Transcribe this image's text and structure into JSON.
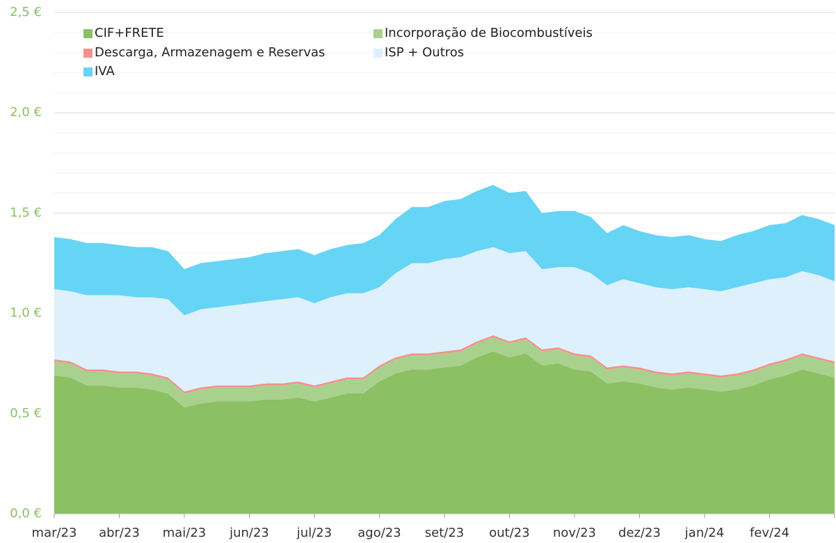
{
  "chart_data": {
    "type": "stacked_area",
    "categories": [
      "mar/23",
      null,
      null,
      null,
      "abr/23",
      null,
      null,
      null,
      "mai/23",
      null,
      null,
      null,
      "jun/23",
      null,
      null,
      null,
      "jul/23",
      null,
      null,
      null,
      "ago/23",
      null,
      null,
      null,
      "set/23",
      null,
      null,
      null,
      "out/23",
      null,
      null,
      null,
      "nov/23",
      null,
      null,
      null,
      "dez/23",
      null,
      null,
      null,
      "jan/24",
      null,
      null,
      null,
      "fev/24",
      null,
      null,
      null,
      null
    ],
    "series": [
      {
        "name": "CIF+FRETE",
        "color": "#8bc063",
        "values": [
          0.69,
          0.68,
          0.64,
          0.64,
          0.63,
          0.63,
          0.62,
          0.6,
          0.53,
          0.55,
          0.56,
          0.56,
          0.56,
          0.57,
          0.57,
          0.58,
          0.56,
          0.58,
          0.6,
          0.6,
          0.66,
          0.7,
          0.72,
          0.72,
          0.73,
          0.74,
          0.78,
          0.81,
          0.78,
          0.8,
          0.74,
          0.75,
          0.72,
          0.71,
          0.65,
          0.66,
          0.65,
          0.63,
          0.62,
          0.63,
          0.62,
          0.61,
          0.62,
          0.64,
          0.67,
          0.69,
          0.72,
          0.7,
          0.68
        ]
      },
      {
        "name": "Incorporação de Biocombustíveis",
        "color": "#a9d18e",
        "values": [
          0.07,
          0.07,
          0.07,
          0.07,
          0.07,
          0.07,
          0.07,
          0.07,
          0.07,
          0.07,
          0.07,
          0.07,
          0.07,
          0.07,
          0.07,
          0.07,
          0.07,
          0.07,
          0.07,
          0.07,
          0.07,
          0.07,
          0.07,
          0.07,
          0.07,
          0.07,
          0.07,
          0.07,
          0.07,
          0.07,
          0.07,
          0.07,
          0.07,
          0.07,
          0.07,
          0.07,
          0.07,
          0.07,
          0.07,
          0.07,
          0.07,
          0.07,
          0.07,
          0.07,
          0.07,
          0.07,
          0.07,
          0.07,
          0.07
        ]
      },
      {
        "name": "Descarga, Armazenagem e Reservas",
        "color": "#f4908e",
        "values": [
          0.01,
          0.01,
          0.01,
          0.01,
          0.01,
          0.01,
          0.01,
          0.01,
          0.01,
          0.01,
          0.01,
          0.01,
          0.01,
          0.01,
          0.01,
          0.01,
          0.01,
          0.01,
          0.01,
          0.01,
          0.01,
          0.01,
          0.01,
          0.01,
          0.01,
          0.01,
          0.01,
          0.01,
          0.01,
          0.01,
          0.01,
          0.01,
          0.01,
          0.01,
          0.01,
          0.01,
          0.01,
          0.01,
          0.01,
          0.01,
          0.01,
          0.01,
          0.01,
          0.01,
          0.01,
          0.01,
          0.01,
          0.01,
          0.01
        ]
      },
      {
        "name": "ISP + Outros",
        "color": "#def0fb",
        "values": [
          0.35,
          0.35,
          0.37,
          0.37,
          0.38,
          0.37,
          0.38,
          0.39,
          0.38,
          0.39,
          0.39,
          0.4,
          0.41,
          0.41,
          0.42,
          0.42,
          0.41,
          0.42,
          0.42,
          0.42,
          0.39,
          0.42,
          0.45,
          0.45,
          0.46,
          0.46,
          0.45,
          0.44,
          0.44,
          0.43,
          0.4,
          0.4,
          0.43,
          0.41,
          0.41,
          0.43,
          0.42,
          0.42,
          0.42,
          0.42,
          0.42,
          0.42,
          0.43,
          0.43,
          0.42,
          0.41,
          0.41,
          0.41,
          0.4
        ]
      },
      {
        "name": "IVA",
        "color": "#66d4f5",
        "values": [
          0.26,
          0.26,
          0.26,
          0.26,
          0.25,
          0.25,
          0.25,
          0.24,
          0.23,
          0.23,
          0.23,
          0.23,
          0.23,
          0.24,
          0.24,
          0.24,
          0.24,
          0.24,
          0.24,
          0.25,
          0.26,
          0.27,
          0.28,
          0.28,
          0.29,
          0.29,
          0.3,
          0.31,
          0.3,
          0.3,
          0.28,
          0.28,
          0.28,
          0.28,
          0.26,
          0.27,
          0.26,
          0.26,
          0.26,
          0.26,
          0.25,
          0.25,
          0.26,
          0.26,
          0.27,
          0.27,
          0.28,
          0.28,
          0.28
        ]
      }
    ],
    "ylim": [
      0,
      2.5
    ],
    "yticks": [
      {
        "value": 0,
        "label": "0,0 €"
      },
      {
        "value": 0.5,
        "label": "0,5 €"
      },
      {
        "value": 1.0,
        "label": "1,0 €"
      },
      {
        "value": 1.5,
        "label": "1,5 €"
      },
      {
        "value": 2.0,
        "label": "2,0 €"
      },
      {
        "value": 2.5,
        "label": "2,5 €"
      }
    ],
    "yminor": [
      0.1,
      0.2,
      0.3,
      0.4,
      0.6,
      0.7,
      0.8,
      0.9,
      1.1,
      1.2,
      1.3,
      1.4,
      1.6,
      1.7,
      1.8,
      1.9,
      2.1,
      2.2,
      2.3,
      2.4
    ],
    "grid": true,
    "legend": "top-left"
  }
}
